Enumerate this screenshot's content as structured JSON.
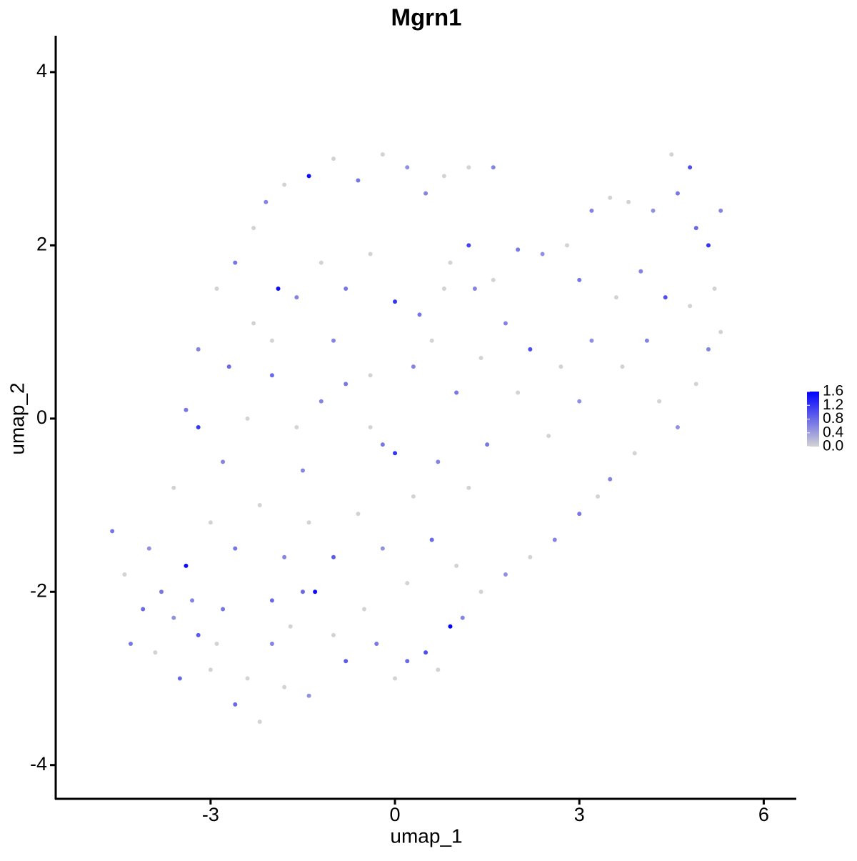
{
  "chart_data": {
    "type": "scatter",
    "title": "Mgrn1",
    "x_label": "umap_1",
    "y_label": "umap_2",
    "xlim": [
      -5.52,
      6.53
    ],
    "ylim": [
      -4.39,
      4.42
    ],
    "xticks": [
      -3,
      0,
      3,
      6
    ],
    "yticks": [
      -4,
      -2,
      0,
      2,
      4
    ],
    "x": [
      -4.6,
      -4.4,
      -4.1,
      -3.9,
      -3.6,
      -3.4,
      -3.2,
      -3.0,
      -2.8,
      -2.6,
      -2.4,
      -2.2,
      -2.0,
      -1.8,
      -1.5,
      -1.4,
      -1.3,
      -1.0,
      -0.8,
      -0.5,
      -0.3,
      0.0,
      0.2,
      0.5,
      0.7,
      0.9,
      1.1,
      1.4,
      1.8,
      2.2,
      2.6,
      3.0,
      3.3,
      3.5,
      3.9,
      4.3,
      4.6,
      4.9,
      5.1,
      5.3,
      5.2,
      5.1,
      4.9,
      5.3,
      4.8,
      4.5,
      4.6,
      4.2,
      3.8,
      3.5,
      3.2,
      2.8,
      2.4,
      2.0,
      1.6,
      1.3,
      0.9,
      3.0,
      3.6,
      4.0,
      4.4,
      4.8,
      4.1,
      3.7,
      3.2,
      2.7,
      2.2,
      1.8,
      1.4,
      1.0,
      2.0,
      2.5,
      3.0,
      1.5,
      1.2,
      0.7,
      0.3,
      0.0,
      -0.4,
      -0.8,
      -1.2,
      -1.6,
      -2.0,
      -2.4,
      -2.8,
      -3.2,
      -3.6,
      -4.0,
      -3.8,
      -3.0,
      -2.6,
      -2.2,
      -1.8,
      -1.4,
      -1.0,
      -0.6,
      -0.2,
      0.2,
      0.6,
      1.0,
      -3.2,
      -2.9,
      -2.6,
      -2.3,
      -2.1,
      -1.8,
      -1.4,
      -1.0,
      -0.6,
      -0.2,
      0.2,
      0.5,
      0.8,
      1.2,
      1.6,
      1.2,
      0.8,
      0.4,
      0.0,
      -0.4,
      -0.8,
      -1.2,
      -1.6,
      -1.9,
      -2.3,
      -2.7,
      -3.4,
      -2.0,
      -1.0,
      -0.4,
      0.3,
      0.6,
      -0.2,
      -1.5,
      -2.0,
      -2.9,
      -3.3,
      -4.3,
      -3.5,
      -1.7
    ],
    "y": [
      -1.3,
      -1.8,
      -2.2,
      -2.7,
      -2.3,
      -1.7,
      -2.5,
      -2.9,
      -2.2,
      -3.3,
      -3.0,
      -3.5,
      -2.6,
      -3.1,
      -2.0,
      -3.2,
      -2.0,
      -2.5,
      -2.8,
      -2.2,
      -2.6,
      -3.0,
      -2.8,
      -2.7,
      -2.9,
      -2.4,
      -2.3,
      -2.0,
      -1.8,
      -1.6,
      -1.4,
      -1.1,
      -0.9,
      -0.7,
      -0.4,
      0.2,
      -0.1,
      0.4,
      0.8,
      1.0,
      1.5,
      2.0,
      2.2,
      2.4,
      2.9,
      3.05,
      2.6,
      2.4,
      2.5,
      2.55,
      2.4,
      2.0,
      1.9,
      1.95,
      1.6,
      1.5,
      1.8,
      1.6,
      1.4,
      1.7,
      1.4,
      1.3,
      0.9,
      0.6,
      0.9,
      0.6,
      0.8,
      1.1,
      0.7,
      0.3,
      0.3,
      -0.2,
      0.2,
      -0.3,
      -0.8,
      -0.5,
      -0.9,
      -0.4,
      -0.1,
      0.4,
      0.2,
      -0.1,
      0.5,
      0.0,
      -0.5,
      -0.1,
      -0.8,
      -1.5,
      -2.0,
      -1.2,
      -1.5,
      -1.0,
      -1.6,
      -1.2,
      -1.6,
      -1.1,
      -1.5,
      -1.9,
      -1.4,
      -1.7,
      0.8,
      1.5,
      1.8,
      2.2,
      2.5,
      2.7,
      2.8,
      3.0,
      2.75,
      3.05,
      2.9,
      2.6,
      2.8,
      2.9,
      2.9,
      2.0,
      1.5,
      1.2,
      1.35,
      1.9,
      1.5,
      1.8,
      1.4,
      1.5,
      1.1,
      0.6,
      0.1,
      0.9,
      0.9,
      0.5,
      0.6,
      0.9,
      -0.3,
      -0.6,
      -2.1,
      -2.6,
      -2.1,
      -2.6,
      -3.0,
      -2.4
    ],
    "values": [
      0.7,
      0,
      0.8,
      0,
      0.5,
      1.5,
      0.9,
      0,
      0.7,
      0.8,
      0,
      0,
      0.6,
      0,
      0.8,
      0.5,
      1.5,
      0,
      0.9,
      0,
      0.7,
      0,
      0.8,
      1.0,
      0,
      1.6,
      0.6,
      0,
      0.5,
      0,
      0.6,
      0.7,
      0,
      0.6,
      0,
      0,
      0.5,
      0,
      0.6,
      0,
      0,
      1.2,
      0.8,
      0.6,
      1.0,
      0,
      0.7,
      0.5,
      0,
      0,
      0.6,
      0,
      0.5,
      0.7,
      0,
      0.6,
      0,
      0.7,
      0,
      0.6,
      1.0,
      0,
      0.6,
      0,
      0.5,
      0,
      1.0,
      0.6,
      0,
      0.7,
      0,
      0,
      0.5,
      0.7,
      0,
      0.6,
      0,
      1.2,
      0,
      0.7,
      0.6,
      0,
      0.8,
      0,
      0.6,
      1.2,
      0,
      0.5,
      0.7,
      0,
      0.7,
      0,
      0.6,
      0,
      0.9,
      0,
      0.5,
      0,
      0.8,
      0,
      0.6,
      0,
      0.7,
      0,
      0.6,
      0,
      1.5,
      0,
      0.7,
      0,
      0.5,
      0.6,
      0,
      0,
      0.6,
      1.1,
      0,
      0.7,
      1.2,
      0,
      0.7,
      0,
      0.6,
      1.5,
      0,
      0.8,
      0.7,
      0,
      0.6,
      0,
      0.6,
      0,
      0.7,
      0.6,
      0.8,
      0,
      0.6,
      0.7,
      0.8,
      0
    ],
    "color_scale": {
      "low": "#d3d3d3",
      "high": "#0000ff",
      "lim": [
        0,
        1.6
      ],
      "ticks": [
        {
          "value": 0,
          "label": "0.0"
        },
        0.4,
        0.8,
        1.2,
        1.6
      ]
    }
  }
}
